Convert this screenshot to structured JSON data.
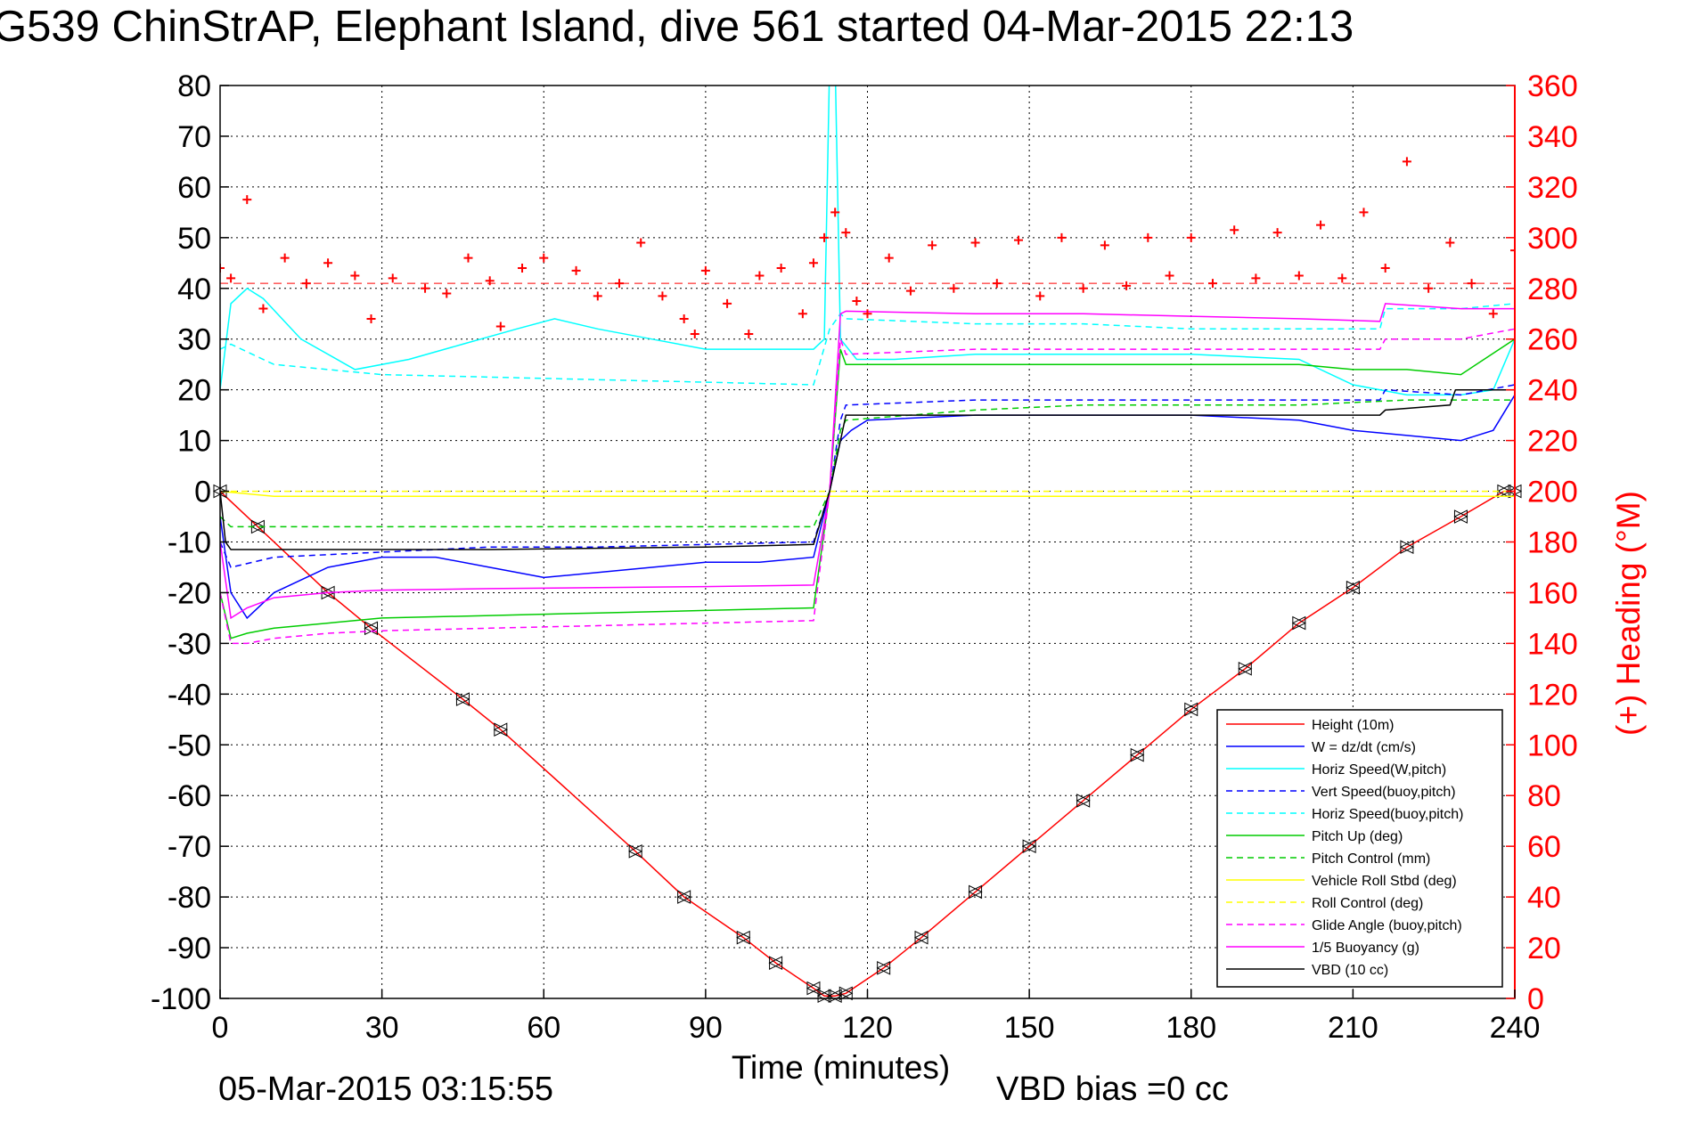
{
  "title": "G539 ChinStrAP, Elephant Island, dive 561 started 04-Mar-2015 22:13",
  "footer": {
    "timestamp": "05-Mar-2015 03:15:55",
    "vbd_bias": "VBD bias =0 cc"
  },
  "chart_data": {
    "type": "line",
    "xlabel": "Time (minutes)",
    "ylabel": "",
    "y2label": "(+) Heading (°M)",
    "xlim": [
      0,
      240
    ],
    "ylim": [
      -100,
      80
    ],
    "y2lim": [
      0,
      360
    ],
    "xticks": [
      0,
      30,
      60,
      90,
      120,
      150,
      180,
      210,
      240
    ],
    "yticks": [
      80,
      70,
      60,
      50,
      40,
      30,
      20,
      10,
      0,
      -10,
      -20,
      -30,
      -40,
      -50,
      -60,
      -70,
      -80,
      -90,
      -100
    ],
    "y2ticks": [
      360,
      340,
      320,
      300,
      280,
      260,
      240,
      220,
      200,
      180,
      160,
      140,
      120,
      100,
      80,
      60,
      40,
      20,
      0
    ],
    "grid": true,
    "legend_position": "lower-right",
    "colors": {
      "height": "#ff0000",
      "w": "#0000ff",
      "horiz_w": "#00ffff",
      "vert_buoy": "#0000ff",
      "horiz_buoy": "#00ffff",
      "pitch": "#00cc00",
      "pitch_ctrl": "#00cc00",
      "roll": "#ffff00",
      "roll_ctrl": "#ffff00",
      "glide": "#ff00ff",
      "buoy": "#ff00ff",
      "vbd": "#000000",
      "heading": "#ff0000",
      "axis_right": "#ff0000"
    },
    "legend": [
      {
        "label": "Height (10m)",
        "key": "height",
        "dash": false
      },
      {
        "label": "W = dz/dt (cm/s)",
        "key": "w",
        "dash": false
      },
      {
        "label": "Horiz Speed(W,pitch)",
        "key": "horiz_w",
        "dash": false
      },
      {
        "label": "Vert Speed(buoy,pitch)",
        "key": "vert_buoy",
        "dash": true
      },
      {
        "label": "Horiz Speed(buoy,pitch)",
        "key": "horiz_buoy",
        "dash": true
      },
      {
        "label": "Pitch Up (deg)",
        "key": "pitch",
        "dash": false
      },
      {
        "label": "Pitch Control (mm)",
        "key": "pitch_ctrl",
        "dash": true
      },
      {
        "label": "Vehicle Roll Stbd (deg)",
        "key": "roll",
        "dash": false
      },
      {
        "label": "Roll Control (deg)",
        "key": "roll_ctrl",
        "dash": true
      },
      {
        "label": "Glide Angle (buoy,pitch)",
        "key": "glide",
        "dash": true
      },
      {
        "label": "1/5 Buoyancy (g)",
        "key": "buoy",
        "dash": false
      },
      {
        "label": "VBD (10 cc)",
        "key": "vbd",
        "dash": false
      }
    ],
    "series": [
      {
        "key": "height",
        "x": [
          0,
          7,
          20,
          28,
          45,
          52,
          77,
          86,
          97,
          103,
          110,
          112,
          114,
          116,
          123,
          130,
          140,
          150,
          160,
          170,
          180,
          190,
          200,
          210,
          220,
          230,
          238,
          240
        ],
        "y": [
          0,
          -7,
          -20,
          -27,
          -41,
          -47,
          -71,
          -80,
          -88,
          -93,
          -98,
          -99.5,
          -99.5,
          -99,
          -94,
          -88,
          -79,
          -70,
          -61,
          -52,
          -43,
          -35,
          -26,
          -19,
          -11,
          -5,
          0,
          0
        ]
      },
      {
        "key": "w",
        "x": [
          0,
          2,
          5,
          10,
          20,
          30,
          40,
          50,
          60,
          70,
          80,
          90,
          100,
          110,
          113,
          115,
          117,
          120,
          140,
          160,
          180,
          200,
          210,
          220,
          230,
          236,
          240
        ],
        "y": [
          -5,
          -20,
          -25,
          -20,
          -15,
          -13,
          -13,
          -15,
          -17,
          -16,
          -15,
          -14,
          -14,
          -13,
          0,
          10,
          12,
          14,
          15,
          15,
          15,
          14,
          12,
          11,
          10,
          12,
          19
        ]
      },
      {
        "key": "horiz_w",
        "x": [
          0,
          2,
          5,
          8,
          15,
          25,
          35,
          45,
          55,
          62,
          70,
          80,
          90,
          100,
          110,
          112,
          113,
          114,
          115,
          118,
          125,
          140,
          160,
          180,
          200,
          210,
          220,
          230,
          236,
          240
        ],
        "y": [
          20,
          37,
          40,
          38,
          30,
          24,
          26,
          29,
          32,
          34,
          32,
          30,
          28,
          28,
          28,
          30,
          85,
          85,
          30,
          26,
          26,
          27,
          27,
          27,
          26,
          21,
          19,
          19,
          20,
          30
        ]
      },
      {
        "key": "vert_buoy",
        "x": [
          0,
          2,
          10,
          30,
          50,
          70,
          90,
          110,
          113,
          115,
          116,
          140,
          160,
          180,
          200,
          215,
          216,
          230,
          240
        ],
        "y": [
          -10,
          -15,
          -13,
          -12,
          -11,
          -11,
          -10.5,
          -10,
          0,
          14,
          17,
          18,
          18,
          18,
          18,
          18,
          20,
          19,
          21
        ]
      },
      {
        "key": "horiz_buoy",
        "x": [
          0,
          2,
          10,
          30,
          50,
          70,
          90,
          110,
          113,
          115,
          116,
          140,
          160,
          180,
          200,
          215,
          216,
          230,
          240
        ],
        "y": [
          28,
          29,
          25,
          23,
          22.5,
          22,
          21.5,
          21,
          32,
          35,
          34,
          33,
          33,
          32,
          32,
          32,
          36,
          36,
          37
        ]
      },
      {
        "key": "pitch",
        "x": [
          0,
          2,
          5,
          10,
          20,
          30,
          50,
          70,
          90,
          110,
          113,
          115,
          116,
          140,
          160,
          180,
          200,
          210,
          220,
          230,
          240
        ],
        "y": [
          -20,
          -29,
          -28,
          -27,
          -26,
          -25,
          -24.5,
          -24,
          -23.5,
          -23,
          0,
          28,
          25,
          25,
          25,
          25,
          25,
          24,
          24,
          23,
          30
        ]
      },
      {
        "key": "pitch_ctrl",
        "x": [
          0,
          2,
          10,
          50,
          90,
          110,
          113,
          115,
          116,
          140,
          160,
          180,
          200,
          220,
          240
        ],
        "y": [
          -5,
          -7,
          -7,
          -7,
          -7,
          -7,
          0,
          12,
          14,
          16,
          17,
          17,
          17,
          18,
          18
        ]
      },
      {
        "key": "roll",
        "x": [
          0,
          10,
          30,
          60,
          90,
          110,
          112,
          115,
          120,
          150,
          180,
          210,
          240
        ],
        "y": [
          0,
          -1,
          -1,
          -1,
          -1,
          -1,
          -1,
          -1,
          -1,
          -1,
          -1,
          -1,
          -1
        ]
      },
      {
        "key": "roll_ctrl",
        "x": [
          0,
          240
        ],
        "y": [
          0,
          0
        ]
      },
      {
        "key": "glide",
        "x": [
          0,
          2,
          5,
          10,
          20,
          30,
          50,
          70,
          90,
          110,
          113,
          115,
          116,
          140,
          160,
          180,
          200,
          215,
          216,
          230,
          240
        ],
        "y": [
          -20,
          -30,
          -30,
          -29,
          -28,
          -27.5,
          -27,
          -26.5,
          -26,
          -25.5,
          0,
          30,
          27,
          28,
          28,
          28,
          28,
          28,
          30,
          30,
          32
        ]
      },
      {
        "key": "buoy",
        "x": [
          0,
          2,
          5,
          10,
          20,
          30,
          50,
          70,
          90,
          110,
          113,
          115,
          116,
          140,
          160,
          180,
          200,
          215,
          216,
          230,
          240
        ],
        "y": [
          -10,
          -25,
          -23,
          -21,
          -20,
          -19.5,
          -19.2,
          -19,
          -18.8,
          -18.5,
          0,
          35,
          35.5,
          35,
          35,
          34.5,
          34,
          33.5,
          37,
          36,
          36
        ]
      },
      {
        "key": "vbd",
        "x": [
          0,
          1,
          2,
          20,
          50,
          90,
          110,
          113,
          116,
          140,
          160,
          180,
          200,
          215,
          216,
          228,
          229,
          240
        ],
        "y": [
          0,
          -10,
          -11.5,
          -11.5,
          -11.5,
          -11,
          -10.5,
          0,
          15,
          15,
          15,
          15,
          15,
          15,
          16,
          17,
          20,
          20
        ]
      },
      {
        "key": "heading",
        "axis": "y2",
        "x": [
          0,
          2,
          5,
          8,
          12,
          16,
          20,
          25,
          28,
          32,
          38,
          42,
          46,
          50,
          52,
          56,
          60,
          66,
          70,
          74,
          78,
          82,
          86,
          88,
          90,
          94,
          98,
          100,
          104,
          108,
          110,
          112,
          114,
          116,
          118,
          120,
          124,
          128,
          132,
          136,
          140,
          144,
          148,
          152,
          156,
          160,
          164,
          168,
          172,
          176,
          180,
          184,
          188,
          192,
          196,
          200,
          204,
          208,
          212,
          216,
          220,
          224,
          228,
          232,
          236,
          240
        ],
        "y": [
          288,
          284,
          315,
          272,
          292,
          282,
          290,
          285,
          268,
          284,
          280,
          278,
          292,
          283,
          265,
          288,
          292,
          287,
          277,
          282,
          298,
          277,
          268,
          262,
          287,
          274,
          262,
          285,
          288,
          270,
          290,
          300,
          310,
          302,
          275,
          270,
          292,
          279,
          297,
          280,
          298,
          282,
          299,
          277,
          300,
          280,
          297,
          281,
          300,
          285,
          300,
          282,
          303,
          284,
          302,
          285,
          305,
          284,
          310,
          288,
          330,
          280,
          298,
          282,
          270,
          295
        ]
      }
    ]
  }
}
